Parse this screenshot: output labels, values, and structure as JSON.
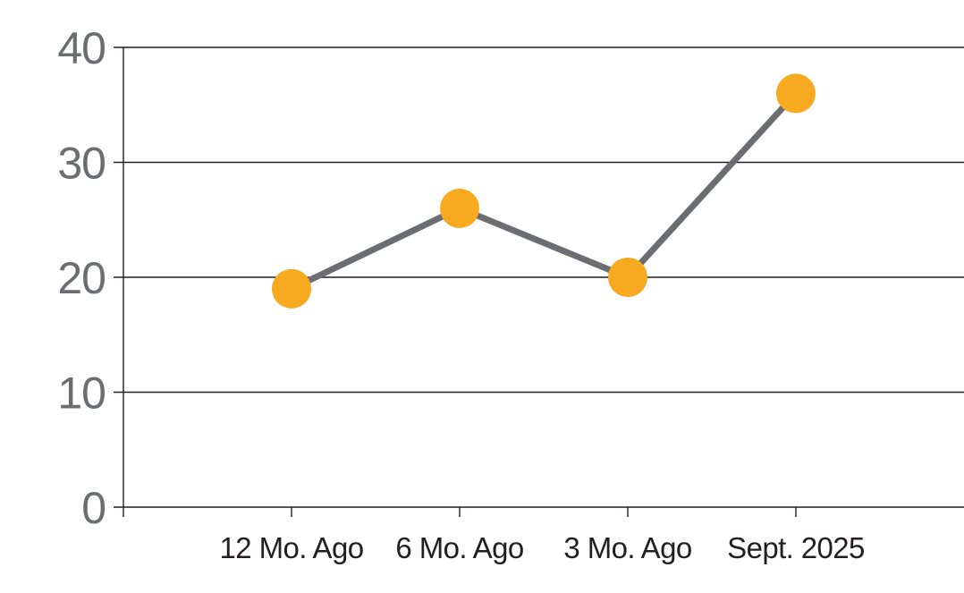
{
  "chart_data": {
    "type": "line",
    "categories": [
      "12 Mo. Ago",
      "6 Mo. Ago",
      "3 Mo. Ago",
      "Sept. 2025"
    ],
    "series": [
      {
        "name": "value",
        "values": [
          19,
          26,
          20,
          36
        ]
      }
    ],
    "title": "",
    "xlabel": "",
    "ylabel": "",
    "ylim": [
      0,
      40
    ],
    "yticks": [
      0,
      10,
      20,
      30,
      40
    ],
    "grid": true,
    "legend_position": "none",
    "marker_color": "#F7A920",
    "line_color": "#6C6D70",
    "axis_color": "#231F20",
    "ytick_label_color": "#6B6D70",
    "xtick_label_color": "#231F20",
    "background_color": "#FFFFFF"
  }
}
